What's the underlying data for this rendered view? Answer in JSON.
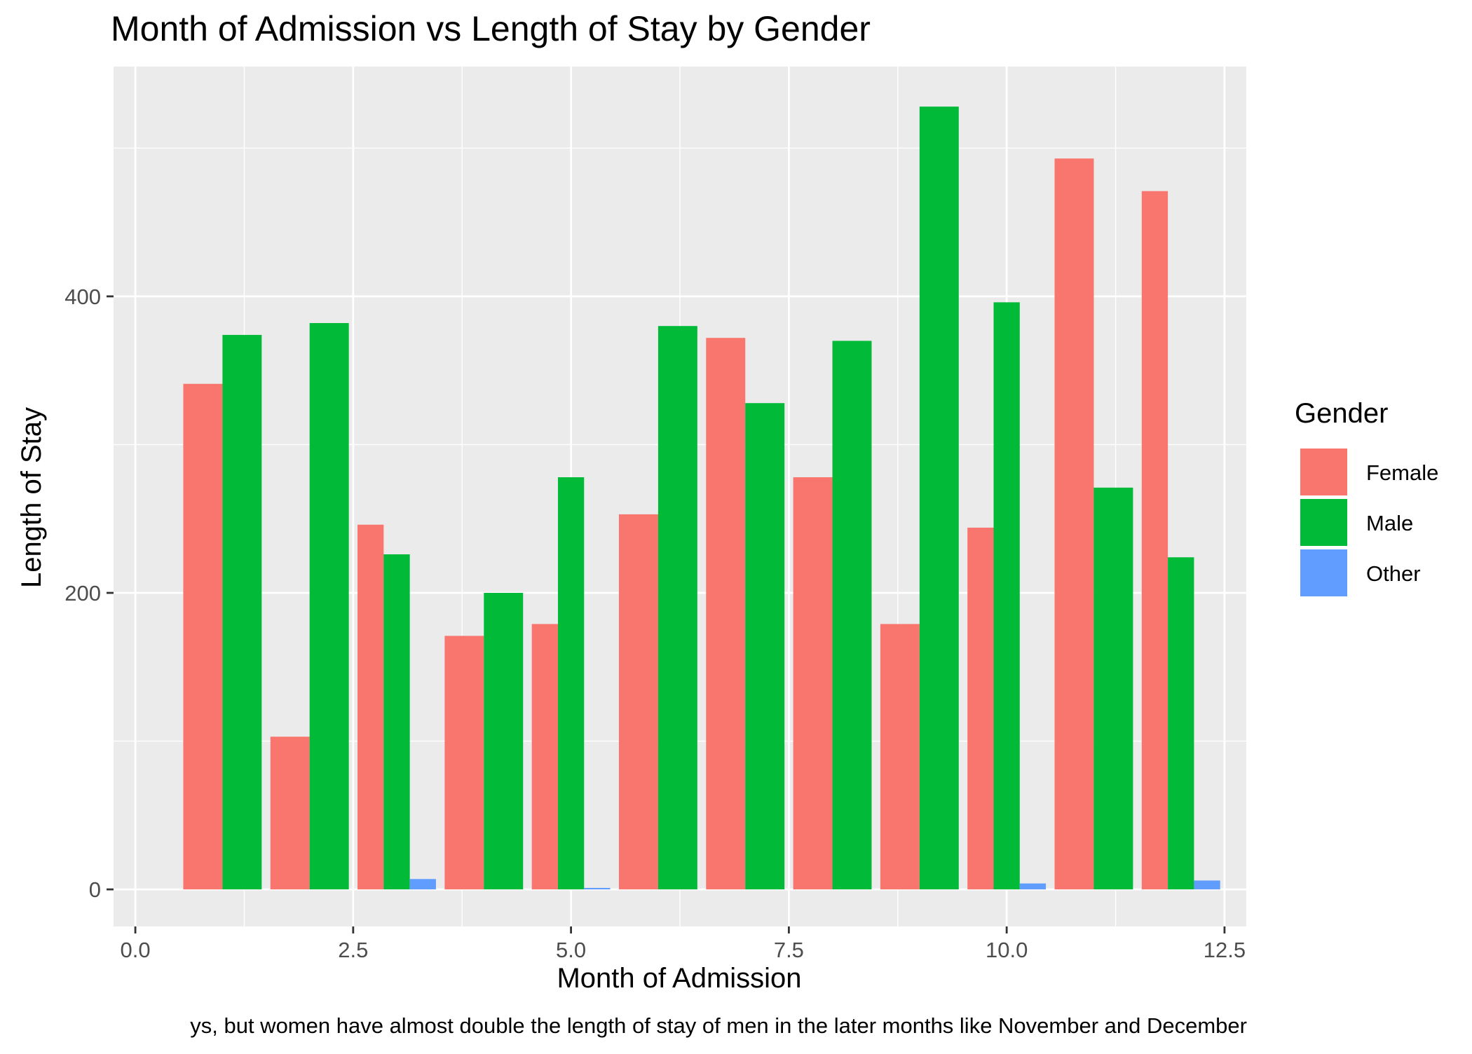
{
  "chart_data": {
    "type": "bar",
    "title": "Month of Admission vs Length of Stay by Gender",
    "xlabel": "Month of Admission",
    "ylabel": "Length of Stay",
    "caption": "ys, but women have almost double the length of stay of men in the later months like November and December",
    "xlim": [
      -0.25,
      12.75
    ],
    "ylim": [
      -25,
      555
    ],
    "x_ticks": [
      0,
      2.5,
      5,
      7.5,
      10,
      12.5
    ],
    "x_tick_labels": [
      "0.0",
      "2.5",
      "5.0",
      "7.5",
      "10.0",
      "12.5"
    ],
    "x_minor_ticks": [
      1.25,
      3.75,
      6.25,
      8.75,
      11.25
    ],
    "y_ticks": [
      0,
      200,
      400
    ],
    "y_tick_labels": [
      "0",
      "200",
      "400"
    ],
    "y_minor_ticks": [
      100,
      300,
      500
    ],
    "grid": true,
    "legend": {
      "title": "Gender",
      "position": "right"
    },
    "series": [
      {
        "name": "Female",
        "color": "#F8766D",
        "points": [
          {
            "month": 1,
            "value": 341
          },
          {
            "month": 2,
            "value": 103
          },
          {
            "month": 3,
            "value": 246
          },
          {
            "month": 4,
            "value": 171
          },
          {
            "month": 5,
            "value": 179
          },
          {
            "month": 6,
            "value": 253
          },
          {
            "month": 7,
            "value": 372
          },
          {
            "month": 8,
            "value": 278
          },
          {
            "month": 9,
            "value": 179
          },
          {
            "month": 10,
            "value": 244
          },
          {
            "month": 11,
            "value": 493
          },
          {
            "month": 12,
            "value": 471
          }
        ]
      },
      {
        "name": "Male",
        "color": "#00BA38",
        "points": [
          {
            "month": 1,
            "value": 374
          },
          {
            "month": 2,
            "value": 382
          },
          {
            "month": 3,
            "value": 226
          },
          {
            "month": 4,
            "value": 200
          },
          {
            "month": 5,
            "value": 278
          },
          {
            "month": 6,
            "value": 380
          },
          {
            "month": 7,
            "value": 328
          },
          {
            "month": 8,
            "value": 370
          },
          {
            "month": 9,
            "value": 528
          },
          {
            "month": 10,
            "value": 396
          },
          {
            "month": 11,
            "value": 271
          },
          {
            "month": 12,
            "value": 224
          }
        ]
      },
      {
        "name": "Other",
        "color": "#619CFF",
        "points": [
          {
            "month": 3,
            "value": 7
          },
          {
            "month": 5,
            "value": 1
          },
          {
            "month": 10,
            "value": 4
          },
          {
            "month": 12,
            "value": 6
          }
        ]
      }
    ],
    "colors": {
      "panel": "#EBEBEB",
      "grid": "#FFFFFF",
      "axis_text": "#4D4D4D",
      "tick": "#333333"
    }
  }
}
